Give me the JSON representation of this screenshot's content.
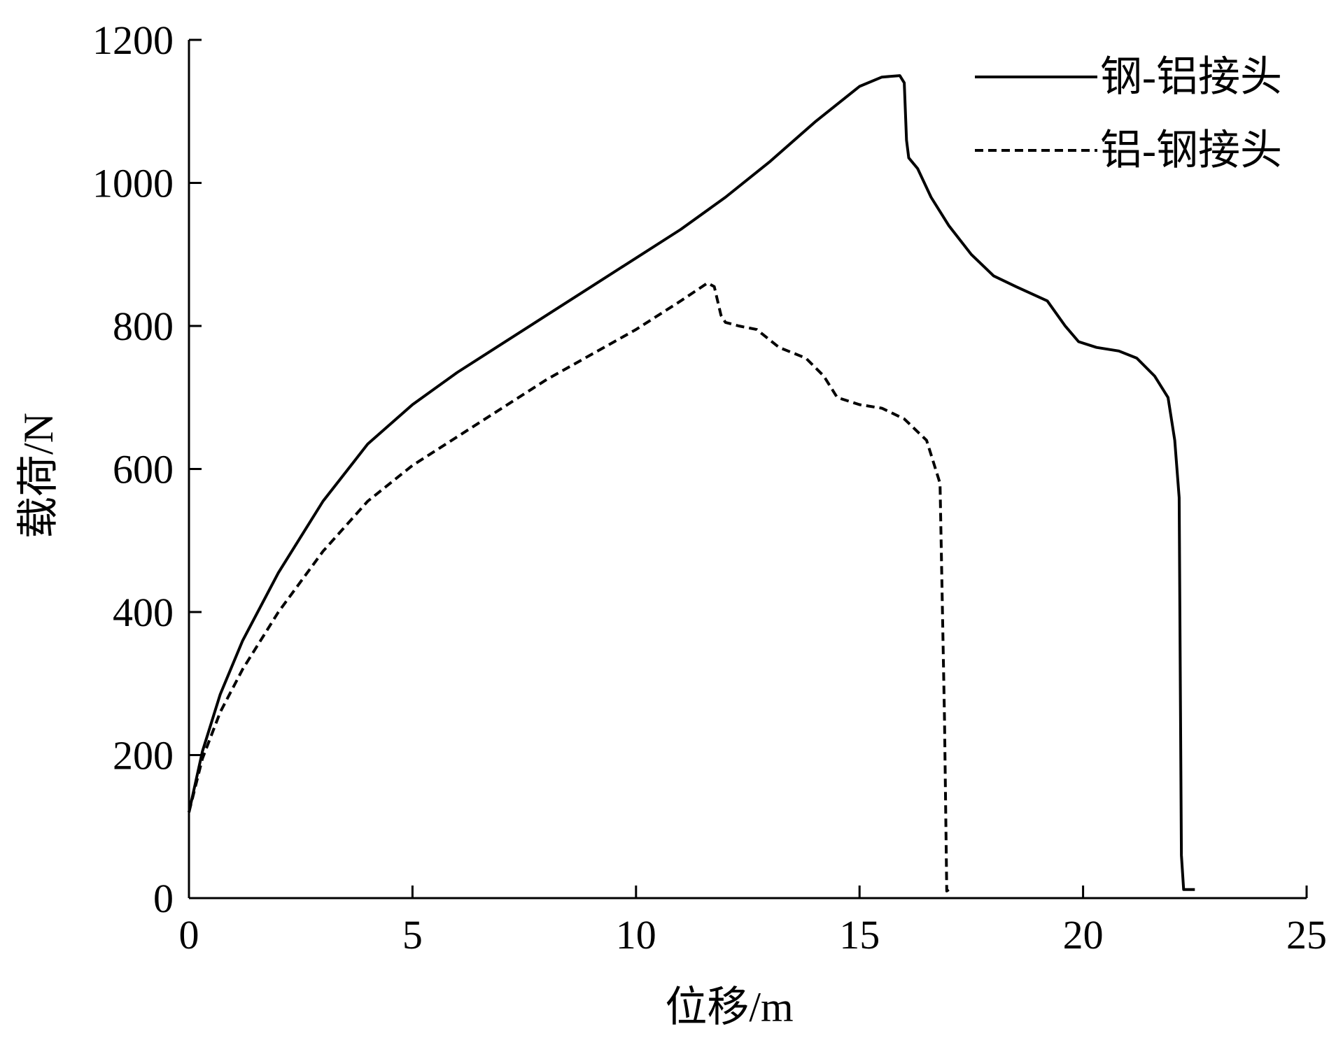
{
  "chart_data": {
    "type": "line",
    "title": "",
    "xlabel": "位移/m",
    "ylabel": "载荷/N",
    "xlim": [
      0,
      25
    ],
    "ylim": [
      0,
      1200
    ],
    "xticks": [
      0,
      5,
      10,
      15,
      20,
      25
    ],
    "yticks": [
      0,
      200,
      400,
      600,
      800,
      1000,
      1200
    ],
    "grid": false,
    "legend_position": "top-right",
    "series": [
      {
        "name": "钢-铝接头",
        "style": "solid",
        "color": "#000000",
        "x": [
          0,
          0.3,
          0.7,
          1.2,
          2,
          3,
          4,
          5,
          6,
          7,
          8,
          9,
          10,
          11,
          12,
          13,
          14,
          15,
          15.5,
          15.9,
          16.0,
          16.05,
          16.1,
          16.3,
          16.6,
          17,
          17.5,
          18,
          18.5,
          19.2,
          19.6,
          19.9,
          20.3,
          20.8,
          21.2,
          21.6,
          21.9,
          22.05,
          22.15,
          22.2,
          22.25,
          22.5
        ],
        "y": [
          120,
          205,
          285,
          360,
          455,
          555,
          635,
          690,
          735,
          775,
          815,
          855,
          895,
          935,
          980,
          1030,
          1085,
          1135,
          1148,
          1150,
          1140,
          1060,
          1035,
          1020,
          980,
          940,
          900,
          870,
          855,
          835,
          800,
          778,
          770,
          765,
          755,
          730,
          700,
          640,
          560,
          60,
          12,
          12
        ]
      },
      {
        "name": "铝-钢接头",
        "style": "dashed",
        "color": "#000000",
        "x": [
          0,
          0.3,
          0.7,
          1.2,
          2,
          3,
          4,
          5,
          6,
          7,
          8,
          9,
          10,
          11,
          11.6,
          11.75,
          11.9,
          12.0,
          12.3,
          12.7,
          13.2,
          13.8,
          14.2,
          14.5,
          15,
          15.5,
          16,
          16.5,
          16.8,
          16.9,
          16.95,
          17.0
        ],
        "y": [
          120,
          195,
          260,
          320,
          400,
          485,
          555,
          605,
          645,
          685,
          725,
          760,
          795,
          835,
          860,
          855,
          815,
          805,
          800,
          795,
          770,
          755,
          730,
          700,
          690,
          685,
          670,
          640,
          580,
          250,
          10,
          12
        ]
      }
    ]
  }
}
